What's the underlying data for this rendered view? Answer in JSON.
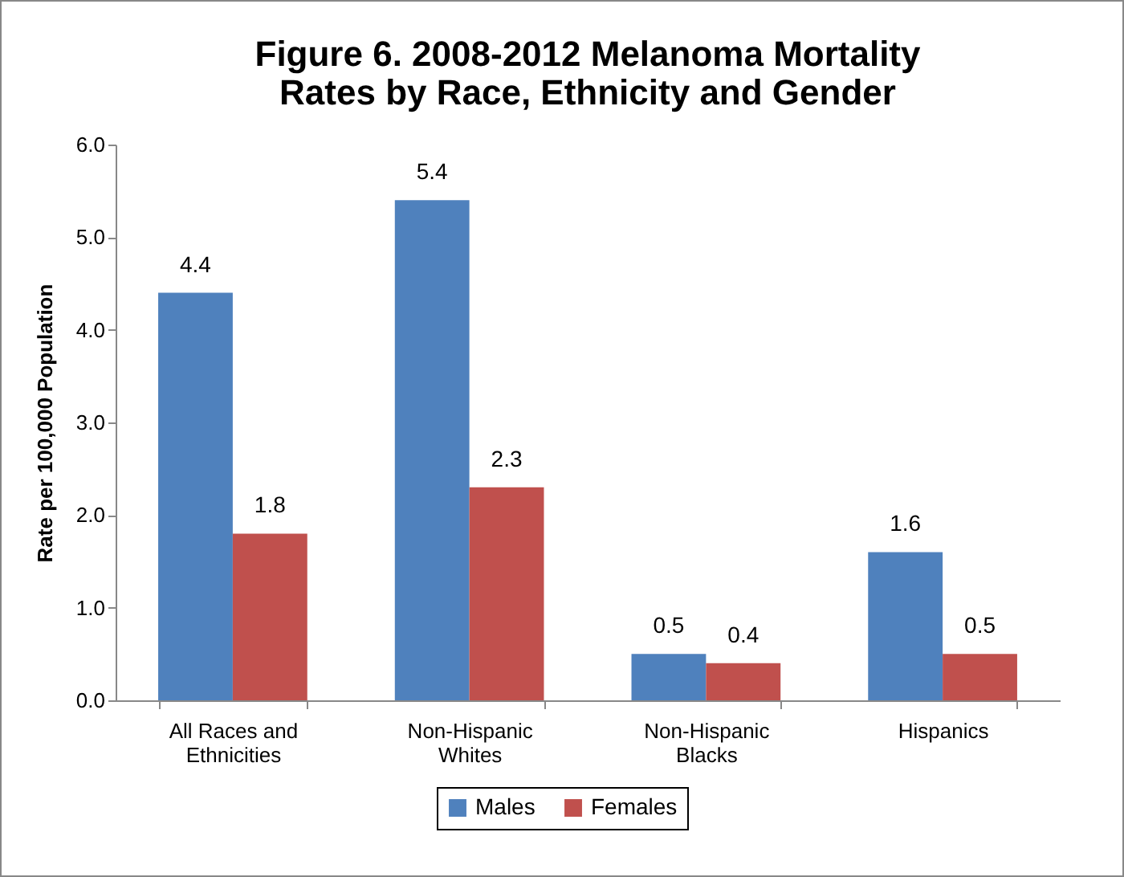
{
  "chart_data": {
    "type": "bar",
    "title": "Figure 6.  2008-2012 Melanoma Mortality Rates by Race, Ethnicity and Gender",
    "ylabel": "Rate per 100,000 Population",
    "categories": [
      "All Races and Ethnicities",
      "Non-Hispanic Whites",
      "Non-Hispanic Blacks",
      "Hispanics"
    ],
    "series": [
      {
        "name": "Males",
        "color": "#4f81bd",
        "values": [
          4.4,
          5.4,
          0.5,
          1.6
        ]
      },
      {
        "name": "Females",
        "color": "#c0504d",
        "values": [
          1.8,
          2.3,
          0.4,
          0.5
        ]
      }
    ],
    "ylim": [
      0,
      6
    ],
    "yticks": [
      {
        "value": 0,
        "label": "0.0"
      },
      {
        "value": 1,
        "label": "1.0"
      },
      {
        "value": 2,
        "label": "2.0"
      },
      {
        "value": 3,
        "label": "3.0"
      },
      {
        "value": 4,
        "label": "4.0"
      },
      {
        "value": 5,
        "label": "5.0"
      },
      {
        "value": 6,
        "label": "6.0"
      }
    ],
    "data_labels": true,
    "grid": false,
    "legend": "bottom"
  }
}
